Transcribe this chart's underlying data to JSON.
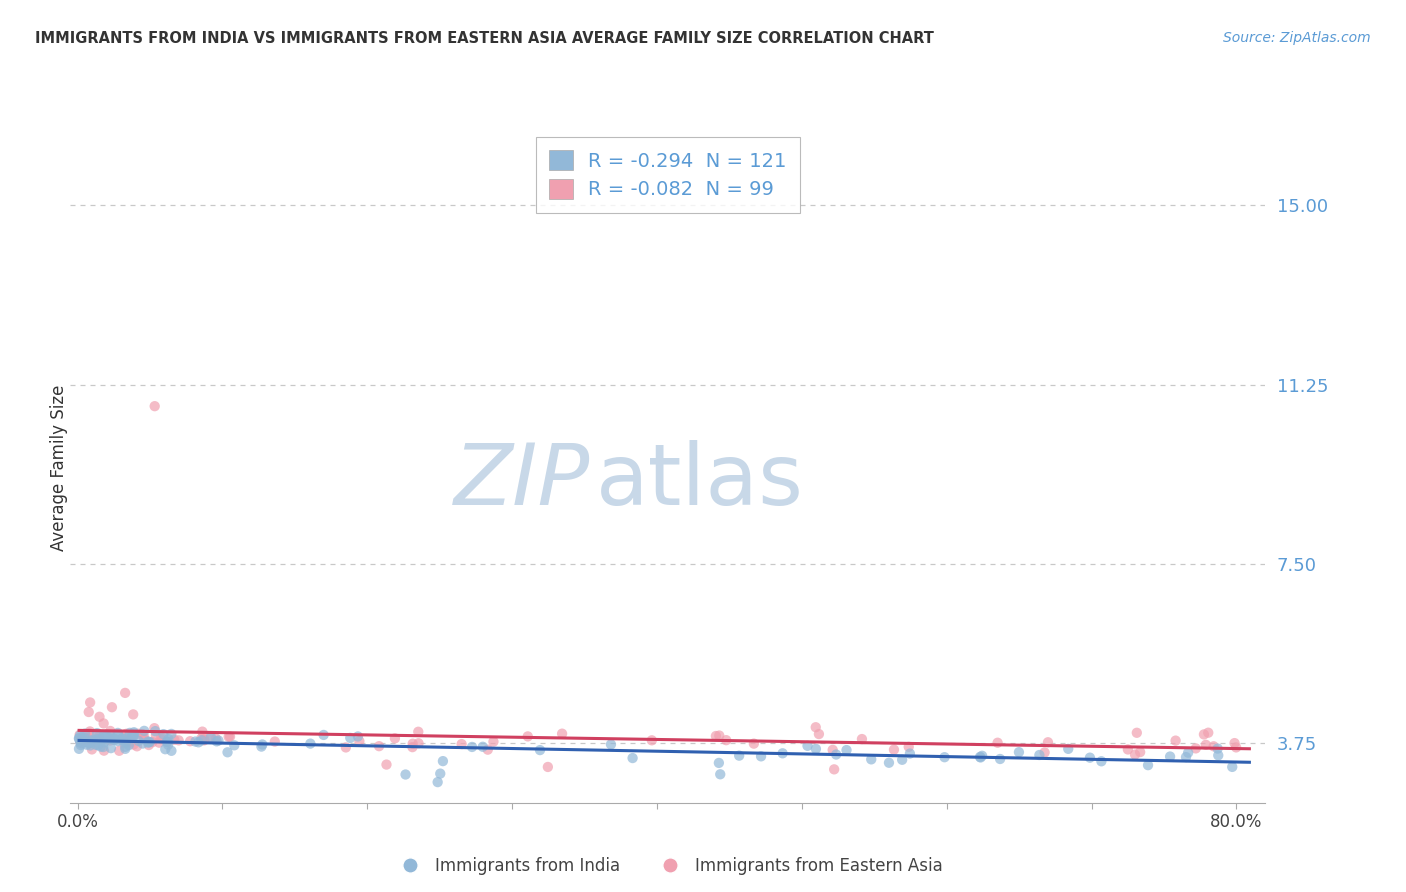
{
  "title": "IMMIGRANTS FROM INDIA VS IMMIGRANTS FROM EASTERN ASIA AVERAGE FAMILY SIZE CORRELATION CHART",
  "source": "Source: ZipAtlas.com",
  "ylabel": "Average Family Size",
  "ylim": [
    2.5,
    16.5
  ],
  "xlim": [
    -0.005,
    0.82
  ],
  "y_ticks_right": [
    3.75,
    7.5,
    11.25,
    15.0
  ],
  "x_ticks": [
    0.0,
    0.1,
    0.2,
    0.3,
    0.4,
    0.5,
    0.6,
    0.7,
    0.8
  ],
  "x_tick_labels": [
    "0.0%",
    "",
    "",
    "",
    "",
    "",
    "",
    "",
    "80.0%"
  ],
  "legend_label_india": "R = -0.294  N = 121",
  "legend_label_east": "R = -0.082  N = 99",
  "legend_label_india_bottom": "Immigrants from India",
  "legend_label_east_bottom": "Immigrants from Eastern Asia",
  "india_color": "#92b8d8",
  "eastern_asia_color": "#f0a0b0",
  "india_line_color": "#3060b0",
  "eastern_asia_line_color": "#d04060",
  "watermark_zip": "ZIP",
  "watermark_atlas": "atlas",
  "watermark_color": "#c8d8e8",
  "background_color": "#ffffff",
  "grid_color": "#c8c8c8",
  "title_color": "#333333",
  "right_axis_color": "#5b9bd5",
  "source_color": "#5b9bd5",
  "india_N": 121,
  "eastern_asia_N": 99
}
